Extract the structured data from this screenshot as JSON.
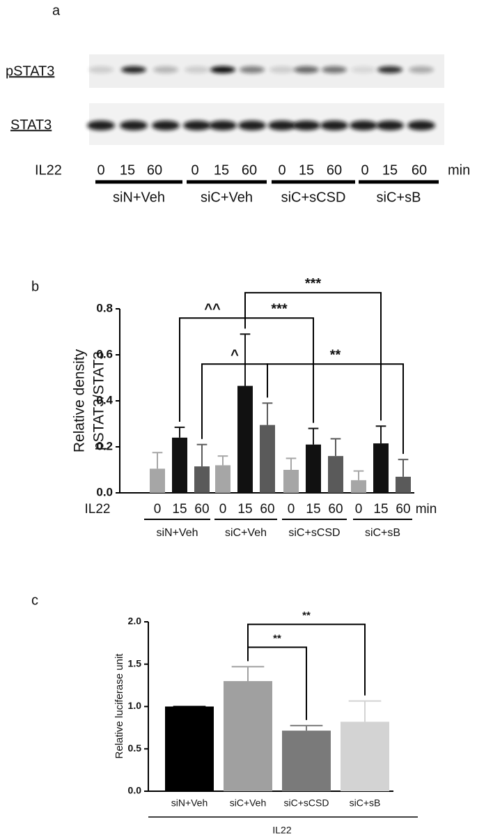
{
  "blot": {
    "label": "a",
    "rows": [
      "pSTAT3",
      "STAT3"
    ],
    "treatment": "IL22",
    "lanes": [
      "0",
      "15",
      "60"
    ],
    "unit": "min",
    "groups": [
      "siN+Veh",
      "siC+Veh",
      "siC+sCSD",
      "siC+sB"
    ]
  },
  "chart_data": [
    {
      "type": "bar",
      "panel": "b",
      "ylabel": [
        "Relative density",
        "pSTAT3/STAT3"
      ],
      "xlabel": "IL22",
      "unit": "min",
      "categories": [
        "siN+Veh",
        "siC+Veh",
        "siC+sCSD",
        "siC+sB"
      ],
      "series": [
        {
          "name": "0",
          "color": "#a6a6a6",
          "values": [
            0.105,
            0.12,
            0.1,
            0.055
          ],
          "errors": [
            0.07,
            0.04,
            0.05,
            0.04
          ]
        },
        {
          "name": "15",
          "color": "#111111",
          "values": [
            0.24,
            0.465,
            0.21,
            0.215
          ],
          "errors": [
            0.045,
            0.225,
            0.07,
            0.075
          ]
        },
        {
          "name": "60",
          "color": "#5a5a5a",
          "values": [
            0.115,
            0.295,
            0.16,
            0.07
          ],
          "errors": [
            0.095,
            0.095,
            0.075,
            0.075
          ]
        }
      ],
      "ylim": [
        0,
        0.8
      ],
      "yticks": [
        {
          "value": 0,
          "label": "0.0"
        },
        0.2,
        0.4,
        0.6,
        0.8
      ],
      "annotations": [
        {
          "label": "^^",
          "from": [
            0,
            1
          ],
          "to": [
            1,
            1
          ],
          "y": 0.76
        },
        {
          "label": "^",
          "from": [
            0,
            2
          ],
          "to": [
            1,
            2
          ],
          "y": 0.56
        },
        {
          "label": "***",
          "from": [
            1,
            1
          ],
          "to": [
            2,
            1
          ],
          "y": 0.76
        },
        {
          "label": "***",
          "from": [
            1,
            1
          ],
          "to": [
            3,
            1
          ],
          "y": 0.87
        },
        {
          "label": "**",
          "from": [
            1,
            2
          ],
          "to": [
            3,
            2
          ],
          "y": 0.56
        }
      ]
    },
    {
      "type": "bar",
      "panel": "c",
      "ylabel": [
        "Relative luciferase unit"
      ],
      "xlabel": "IL22",
      "categories": [
        "siN+Veh",
        "siC+Veh",
        "siC+sCSD",
        "siC+sB"
      ],
      "values": [
        1.0,
        1.3,
        0.715,
        0.82
      ],
      "errors": [
        0,
        0.17,
        0.06,
        0.245
      ],
      "colors": [
        "#000000",
        "#a0a0a0",
        "#7a7a7a",
        "#d3d3d3"
      ],
      "ylim": [
        0,
        2.0
      ],
      "yticks": [
        {
          "value": 0,
          "label": "0.0"
        },
        0.5,
        {
          "value": 1,
          "label": "1.0"
        },
        1.5,
        {
          "value": 2,
          "label": "2.0"
        }
      ],
      "annotations": [
        {
          "label": "**",
          "from": 1,
          "to": 2,
          "y": 1.7
        },
        {
          "label": "**",
          "from": 1,
          "to": 3,
          "y": 1.97
        }
      ]
    }
  ]
}
